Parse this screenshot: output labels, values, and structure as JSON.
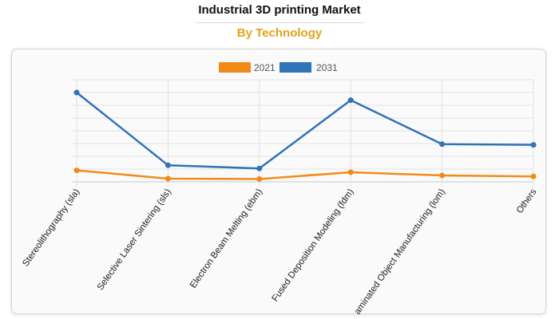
{
  "header": {
    "title": "Industrial 3D printing Market",
    "subtitle": "By Technology"
  },
  "colors": {
    "series_2021": "#f28a1a",
    "series_2031": "#2f73b8",
    "subtitle": "#e3a318",
    "grid": "#e2e2e2"
  },
  "chart_data": {
    "type": "line",
    "title": "Industrial 3D printing Market",
    "subtitle": "By Technology",
    "categories": [
      "Stereolithography (sla)",
      "Selective Laser Sintering (sls)",
      "Electron Beam Melting (ebm)",
      "Fused Deposition Modeling (fdm)",
      "aminated Object Manufacturing (lom)",
      "Others"
    ],
    "series": [
      {
        "name": "2021",
        "color": "#f28a1a",
        "values": [
          0.9,
          0.25,
          0.22,
          0.75,
          0.5,
          0.42
        ]
      },
      {
        "name": "2031",
        "color": "#2f73b8",
        "values": [
          7.0,
          1.3,
          1.05,
          6.4,
          2.95,
          2.9
        ]
      }
    ],
    "ylim": [
      0,
      8
    ],
    "yticks": [
      0,
      1,
      2,
      3,
      4,
      5,
      6,
      7,
      8
    ],
    "y_tick_labels_visible": false,
    "grid": true,
    "legend_position": "top-center",
    "xlabel": "",
    "ylabel": ""
  }
}
